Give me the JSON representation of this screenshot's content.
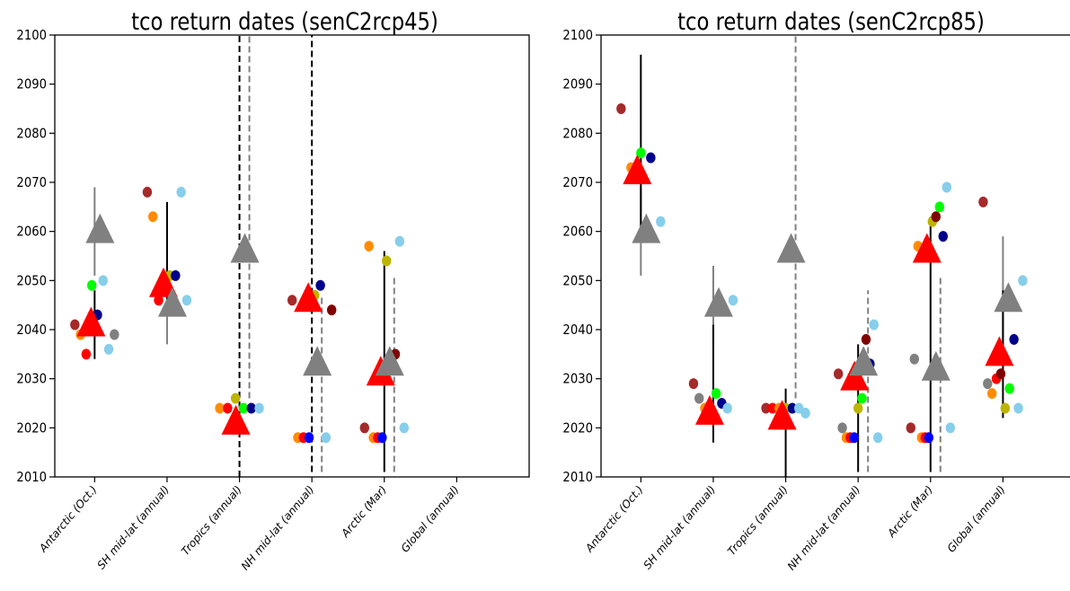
{
  "chart_data": [
    {
      "type": "scatter",
      "title": "tco return dates (senC2rcp45)",
      "xlabel": "",
      "ylabel": "",
      "ylim": [
        2010,
        2100
      ],
      "yticks": [
        2010,
        2020,
        2030,
        2040,
        2050,
        2060,
        2070,
        2080,
        2090,
        2100
      ],
      "categories": [
        "Antarctic (Oct.)",
        "SH mid-lat (annual)",
        "Tropics (annual)",
        "NH mid-lat (annual)",
        "Arctic (Mar)",
        "Global (annual)"
      ],
      "colors": {
        "multi_model_mean": "#ff0000",
        "reference": "#808080",
        "range_solid": "#000000",
        "range_dashed": "#808080"
      },
      "multi_model_mean": [
        {
          "category": "Antarctic (Oct.)",
          "value": 2041,
          "range": [
            2034,
            2048
          ]
        },
        {
          "category": "SH mid-lat (annual)",
          "value": 2049,
          "range": [
            2045,
            2066
          ]
        },
        {
          "category": "Tropics (annual)",
          "value": 2021,
          "range": [
            2010,
            2100
          ],
          "open_ended": true
        },
        {
          "category": "NH mid-lat (annual)",
          "value": 2046,
          "range": [
            2011,
            2100
          ],
          "open_ended": true
        },
        {
          "category": "Arctic (Mar)",
          "value": 2031,
          "range": [
            2011,
            2056
          ]
        }
      ],
      "reference": [
        {
          "category": "Antarctic (Oct.)",
          "value": 2060,
          "range": [
            2051,
            2069
          ]
        },
        {
          "category": "SH mid-lat (annual)",
          "value": 2045,
          "range": [
            2037,
            2053
          ]
        },
        {
          "category": "Tropics (annual)",
          "value": 2056,
          "range": [
            2026,
            2100
          ],
          "open_ended": true
        },
        {
          "category": "NH mid-lat (annual)",
          "value": 2033,
          "range": [
            2011,
            2047
          ],
          "open_ended": true
        },
        {
          "category": "Arctic (Mar)",
          "value": 2033,
          "range": [
            2011,
            2051
          ],
          "open_ended": true
        }
      ],
      "models": [
        {
          "category": "Antarctic (Oct.)",
          "points": [
            {
              "color": "#a52a2a",
              "value": 2041
            },
            {
              "color": "#ff8c00",
              "value": 2039
            },
            {
              "color": "#ff0000",
              "value": 2035
            },
            {
              "color": "#00ff00",
              "value": 2049
            },
            {
              "color": "#00008b",
              "value": 2043
            },
            {
              "color": "#87ceeb",
              "value": 2050
            },
            {
              "color": "#87ceeb",
              "value": 2036
            },
            {
              "color": "#808080",
              "value": 2039
            }
          ]
        },
        {
          "category": "SH mid-lat (annual)",
          "points": [
            {
              "color": "#a52a2a",
              "value": 2068
            },
            {
              "color": "#ff8c00",
              "value": 2063
            },
            {
              "color": "#ff0000",
              "value": 2046
            },
            {
              "color": "#00ff00",
              "value": 2048
            },
            {
              "color": "#bdb400",
              "value": 2051
            },
            {
              "color": "#00008b",
              "value": 2051
            },
            {
              "color": "#87ceeb",
              "value": 2068
            },
            {
              "color": "#87ceeb",
              "value": 2046
            }
          ]
        },
        {
          "category": "Tropics (annual)",
          "points": [
            {
              "color": "#ff8c00",
              "value": 2024
            },
            {
              "color": "#ff0000",
              "value": 2024
            },
            {
              "color": "#bdb400",
              "value": 2026
            },
            {
              "color": "#00ff00",
              "value": 2024
            },
            {
              "color": "#00008b",
              "value": 2024
            },
            {
              "color": "#87ceeb",
              "value": 2024
            }
          ]
        },
        {
          "category": "NH mid-lat (annual)",
          "points": [
            {
              "color": "#a52a2a",
              "value": 2046
            },
            {
              "color": "#ff8c00",
              "value": 2018
            },
            {
              "color": "#ff0000",
              "value": 2018
            },
            {
              "color": "#0000ff",
              "value": 2018
            },
            {
              "color": "#bdb400",
              "value": 2047
            },
            {
              "color": "#00008b",
              "value": 2049
            },
            {
              "color": "#87ceeb",
              "value": 2018
            },
            {
              "color": "#800000",
              "value": 2044
            }
          ]
        },
        {
          "category": "Arctic (Mar)",
          "points": [
            {
              "color": "#a52a2a",
              "value": 2020
            },
            {
              "color": "#ff8c00",
              "value": 2057
            },
            {
              "color": "#ff8c00",
              "value": 2018
            },
            {
              "color": "#ff0000",
              "value": 2018
            },
            {
              "color": "#0000ff",
              "value": 2018
            },
            {
              "color": "#bdb400",
              "value": 2054
            },
            {
              "color": "#00008b",
              "value": 2034
            },
            {
              "color": "#800000",
              "value": 2035
            },
            {
              "color": "#87ceeb",
              "value": 2058
            },
            {
              "color": "#87ceeb",
              "value": 2020
            }
          ]
        },
        {
          "category": "Global (annual)",
          "points": []
        }
      ]
    },
    {
      "type": "scatter",
      "title": "tco return dates (senC2rcp85)",
      "xlabel": "",
      "ylabel": "",
      "ylim": [
        2010,
        2100
      ],
      "yticks": [
        2010,
        2020,
        2030,
        2040,
        2050,
        2060,
        2070,
        2080,
        2090,
        2100
      ],
      "categories": [
        "Antarctic (Oct.)",
        "SH mid-lat (annual)",
        "Tropics (annual)",
        "NH mid-lat (annual)",
        "Arctic (Mar)",
        "Global (annual)"
      ],
      "colors": {
        "multi_model_mean": "#ff0000",
        "reference": "#808080",
        "range_solid": "#000000",
        "range_dashed": "#808080"
      },
      "multi_model_mean": [
        {
          "category": "Antarctic (Oct.)",
          "value": 2072,
          "range": [
            2060,
            2096
          ]
        },
        {
          "category": "SH mid-lat (annual)",
          "value": 2023,
          "range": [
            2017,
            2041
          ]
        },
        {
          "category": "Tropics (annual)",
          "value": 2022,
          "range": [
            2010,
            2028
          ]
        },
        {
          "category": "NH mid-lat (annual)",
          "value": 2030,
          "range": [
            2011,
            2037
          ]
        },
        {
          "category": "Arctic (Mar)",
          "value": 2056,
          "range": [
            2011,
            2063
          ]
        },
        {
          "category": "Global (annual)",
          "value": 2035,
          "range": [
            2022,
            2048
          ]
        }
      ],
      "reference": [
        {
          "category": "Antarctic (Oct.)",
          "value": 2060,
          "range": [
            2051,
            2069
          ]
        },
        {
          "category": "SH mid-lat (annual)",
          "value": 2045,
          "range": [
            2037,
            2053
          ]
        },
        {
          "category": "Tropics (annual)",
          "value": 2056,
          "range": [
            2026,
            2100
          ],
          "open_ended": true
        },
        {
          "category": "NH mid-lat (annual)",
          "value": 2033,
          "range": [
            2011,
            2048
          ],
          "open_ended": true
        },
        {
          "category": "Arctic (Mar)",
          "value": 2032,
          "range": [
            2011,
            2051
          ],
          "open_ended": true
        },
        {
          "category": "Global (annual)",
          "value": 2046,
          "range": [
            2033,
            2059
          ]
        }
      ],
      "models": [
        {
          "category": "Antarctic (Oct.)",
          "points": [
            {
              "color": "#a52a2a",
              "value": 2085
            },
            {
              "color": "#ff8c00",
              "value": 2073
            },
            {
              "color": "#00ff00",
              "value": 2076
            },
            {
              "color": "#00008b",
              "value": 2075
            },
            {
              "color": "#87ceeb",
              "value": 2062
            }
          ]
        },
        {
          "category": "SH mid-lat (annual)",
          "points": [
            {
              "color": "#a52a2a",
              "value": 2029
            },
            {
              "color": "#808080",
              "value": 2026
            },
            {
              "color": "#ff8c00",
              "value": 2024
            },
            {
              "color": "#ff0000",
              "value": 2024
            },
            {
              "color": "#00ff00",
              "value": 2027
            },
            {
              "color": "#00008b",
              "value": 2025
            },
            {
              "color": "#87ceeb",
              "value": 2024
            },
            {
              "color": "#87ceeb",
              "value": 2046
            }
          ]
        },
        {
          "category": "Tropics (annual)",
          "points": [
            {
              "color": "#a52a2a",
              "value": 2024
            },
            {
              "color": "#ff0000",
              "value": 2024
            },
            {
              "color": "#ff8c00",
              "value": 2024
            },
            {
              "color": "#bdb400",
              "value": 2024
            },
            {
              "color": "#00008b",
              "value": 2024
            },
            {
              "color": "#87ceeb",
              "value": 2024
            },
            {
              "color": "#87ceeb",
              "value": 2023
            }
          ]
        },
        {
          "category": "NH mid-lat (annual)",
          "points": [
            {
              "color": "#a52a2a",
              "value": 2031
            },
            {
              "color": "#808080",
              "value": 2020
            },
            {
              "color": "#ff8c00",
              "value": 2018
            },
            {
              "color": "#ff0000",
              "value": 2018
            },
            {
              "color": "#0000ff",
              "value": 2018
            },
            {
              "color": "#bdb400",
              "value": 2024
            },
            {
              "color": "#00ff00",
              "value": 2026
            },
            {
              "color": "#800000",
              "value": 2038
            },
            {
              "color": "#00008b",
              "value": 2033
            },
            {
              "color": "#87ceeb",
              "value": 2041
            },
            {
              "color": "#87ceeb",
              "value": 2018
            }
          ]
        },
        {
          "category": "Arctic (Mar)",
          "points": [
            {
              "color": "#a52a2a",
              "value": 2020
            },
            {
              "color": "#808080",
              "value": 2034
            },
            {
              "color": "#ff8c00",
              "value": 2057
            },
            {
              "color": "#ff8c00",
              "value": 2018
            },
            {
              "color": "#ff0000",
              "value": 2018
            },
            {
              "color": "#0000ff",
              "value": 2018
            },
            {
              "color": "#bdb400",
              "value": 2062
            },
            {
              "color": "#800000",
              "value": 2063
            },
            {
              "color": "#00ff00",
              "value": 2065
            },
            {
              "color": "#00008b",
              "value": 2059
            },
            {
              "color": "#87ceeb",
              "value": 2069
            },
            {
              "color": "#87ceeb",
              "value": 2020
            }
          ]
        },
        {
          "category": "Global (annual)",
          "points": [
            {
              "color": "#a52a2a",
              "value": 2066
            },
            {
              "color": "#808080",
              "value": 2029
            },
            {
              "color": "#ff8c00",
              "value": 2027
            },
            {
              "color": "#ff0000",
              "value": 2030
            },
            {
              "color": "#800000",
              "value": 2031
            },
            {
              "color": "#bdb400",
              "value": 2024
            },
            {
              "color": "#00ff00",
              "value": 2028
            },
            {
              "color": "#00008b",
              "value": 2038
            },
            {
              "color": "#87ceeb",
              "value": 2024
            },
            {
              "color": "#87ceeb",
              "value": 2050
            }
          ]
        }
      ]
    }
  ]
}
